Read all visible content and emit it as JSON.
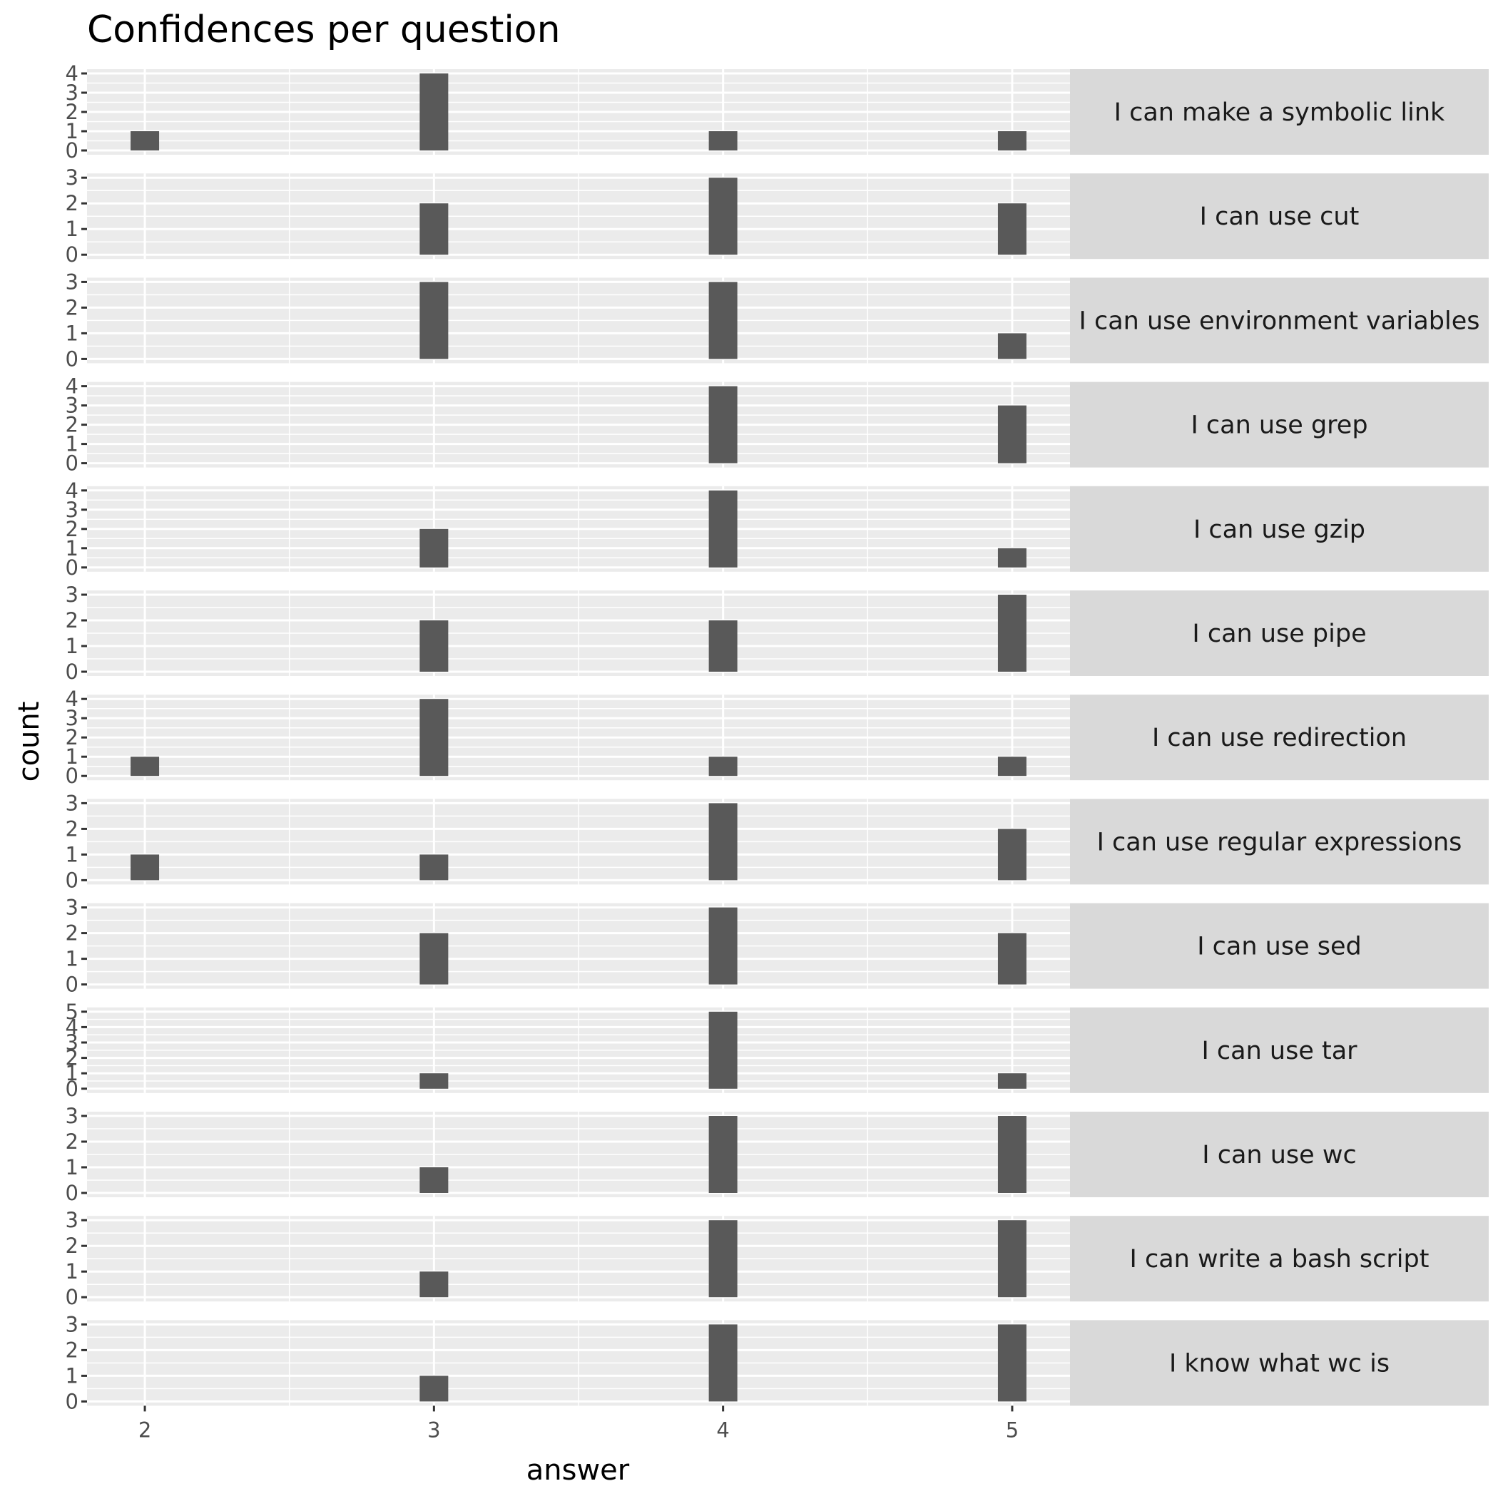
{
  "chart_data": {
    "type": "bar",
    "title": "Confidences per question",
    "xlabel": "answer",
    "ylabel": "count",
    "x_ticks": [
      2,
      3,
      4,
      5
    ],
    "xlim": [
      1.8,
      5.2
    ],
    "facet_layout": "rows",
    "colors": {
      "panel_background": "#ebebeb",
      "grid_major": "#ffffff",
      "strip_background": "#d9d9d9",
      "bar_fill": "#595959",
      "tick_label": "#4d4d4d"
    },
    "facets": [
      {
        "label": "I can make a symbolic link",
        "ylim": [
          0,
          4
        ],
        "y_ticks": [
          0,
          1,
          2,
          3,
          4
        ],
        "bars": [
          {
            "x": 2,
            "count": 1
          },
          {
            "x": 3,
            "count": 4
          },
          {
            "x": 4,
            "count": 1
          },
          {
            "x": 5,
            "count": 1
          }
        ]
      },
      {
        "label": "I can use cut",
        "ylim": [
          0,
          3
        ],
        "y_ticks": [
          0,
          1,
          2,
          3
        ],
        "bars": [
          {
            "x": 3,
            "count": 2
          },
          {
            "x": 4,
            "count": 3
          },
          {
            "x": 5,
            "count": 2
          }
        ]
      },
      {
        "label": "I can use environment variables",
        "ylim": [
          0,
          3
        ],
        "y_ticks": [
          0,
          1,
          2,
          3
        ],
        "bars": [
          {
            "x": 3,
            "count": 3
          },
          {
            "x": 4,
            "count": 3
          },
          {
            "x": 5,
            "count": 1
          }
        ]
      },
      {
        "label": "I can use grep",
        "ylim": [
          0,
          4
        ],
        "y_ticks": [
          0,
          1,
          2,
          3,
          4
        ],
        "bars": [
          {
            "x": 4,
            "count": 4
          },
          {
            "x": 5,
            "count": 3
          }
        ]
      },
      {
        "label": "I can use gzip",
        "ylim": [
          0,
          4
        ],
        "y_ticks": [
          0,
          1,
          2,
          3,
          4
        ],
        "bars": [
          {
            "x": 3,
            "count": 2
          },
          {
            "x": 4,
            "count": 4
          },
          {
            "x": 5,
            "count": 1
          }
        ]
      },
      {
        "label": "I can use pipe",
        "ylim": [
          0,
          3
        ],
        "y_ticks": [
          0,
          1,
          2,
          3
        ],
        "bars": [
          {
            "x": 3,
            "count": 2
          },
          {
            "x": 4,
            "count": 2
          },
          {
            "x": 5,
            "count": 3
          }
        ]
      },
      {
        "label": "I can use redirection",
        "ylim": [
          0,
          4
        ],
        "y_ticks": [
          0,
          1,
          2,
          3,
          4
        ],
        "bars": [
          {
            "x": 2,
            "count": 1
          },
          {
            "x": 3,
            "count": 4
          },
          {
            "x": 4,
            "count": 1
          },
          {
            "x": 5,
            "count": 1
          }
        ]
      },
      {
        "label": "I can use regular expressions",
        "ylim": [
          0,
          3
        ],
        "y_ticks": [
          0,
          1,
          2,
          3
        ],
        "bars": [
          {
            "x": 2,
            "count": 1
          },
          {
            "x": 3,
            "count": 1
          },
          {
            "x": 4,
            "count": 3
          },
          {
            "x": 5,
            "count": 2
          }
        ]
      },
      {
        "label": "I can use sed",
        "ylim": [
          0,
          3
        ],
        "y_ticks": [
          0,
          1,
          2,
          3
        ],
        "bars": [
          {
            "x": 3,
            "count": 2
          },
          {
            "x": 4,
            "count": 3
          },
          {
            "x": 5,
            "count": 2
          }
        ]
      },
      {
        "label": "I can use tar",
        "ylim": [
          0,
          5
        ],
        "y_ticks": [
          0,
          1,
          2,
          3,
          4,
          5
        ],
        "bars": [
          {
            "x": 3,
            "count": 1
          },
          {
            "x": 4,
            "count": 5
          },
          {
            "x": 5,
            "count": 1
          }
        ]
      },
      {
        "label": "I can use wc",
        "ylim": [
          0,
          3
        ],
        "y_ticks": [
          0,
          1,
          2,
          3
        ],
        "bars": [
          {
            "x": 3,
            "count": 1
          },
          {
            "x": 4,
            "count": 3
          },
          {
            "x": 5,
            "count": 3
          }
        ]
      },
      {
        "label": "I can write a bash script",
        "ylim": [
          0,
          3
        ],
        "y_ticks": [
          0,
          1,
          2,
          3
        ],
        "bars": [
          {
            "x": 3,
            "count": 1
          },
          {
            "x": 4,
            "count": 3
          },
          {
            "x": 5,
            "count": 3
          }
        ]
      },
      {
        "label": "I know what wc is",
        "ylim": [
          0,
          3
        ],
        "y_ticks": [
          0,
          1,
          2,
          3
        ],
        "bars": [
          {
            "x": 3,
            "count": 1
          },
          {
            "x": 4,
            "count": 3
          },
          {
            "x": 5,
            "count": 3
          }
        ]
      }
    ]
  }
}
